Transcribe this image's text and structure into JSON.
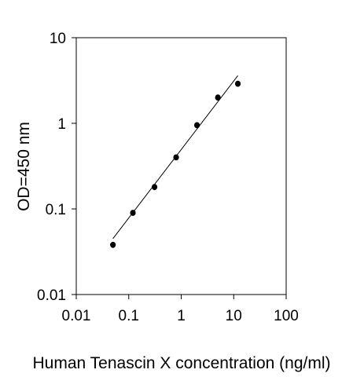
{
  "chart_data": {
    "type": "scatter",
    "title": "",
    "xlabel": "Human Tenascin X concentration (ng/ml)",
    "ylabel": "OD=450 nm",
    "xscale": "log",
    "yscale": "log",
    "xlim": [
      0.01,
      100
    ],
    "ylim": [
      0.01,
      10
    ],
    "xticks": [
      {
        "value": 0.01,
        "label": "0.01"
      },
      {
        "value": 0.1,
        "label": "0.1"
      },
      {
        "value": 1,
        "label": "1"
      },
      {
        "value": 10,
        "label": "10"
      },
      {
        "value": 100,
        "label": "100"
      }
    ],
    "yticks": [
      {
        "value": 0.01,
        "label": "0.01"
      },
      {
        "value": 0.1,
        "label": "0.1"
      },
      {
        "value": 1,
        "label": "1"
      },
      {
        "value": 10,
        "label": "10"
      }
    ],
    "grid": false,
    "legend": "none",
    "points": [
      {
        "x": 0.05,
        "y": 0.038
      },
      {
        "x": 0.12,
        "y": 0.09
      },
      {
        "x": 0.31,
        "y": 0.18
      },
      {
        "x": 0.8,
        "y": 0.4
      },
      {
        "x": 2.0,
        "y": 0.95
      },
      {
        "x": 5.0,
        "y": 2.0
      },
      {
        "x": 12.0,
        "y": 2.9
      }
    ],
    "fit_line": {
      "x": [
        0.05,
        12.0
      ],
      "y": [
        0.045,
        3.6
      ]
    },
    "marker_color": "#000000",
    "line_color": "#000000"
  }
}
